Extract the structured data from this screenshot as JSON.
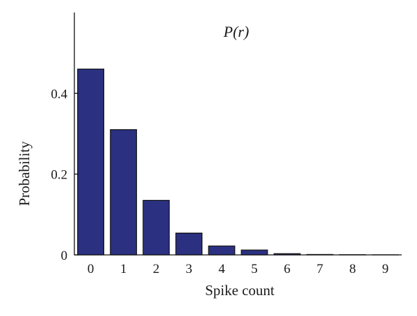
{
  "chart_data": {
    "type": "bar",
    "title": "P(r)",
    "xlabel": "Spike count",
    "ylabel": "Probability",
    "categories": [
      "0",
      "1",
      "2",
      "3",
      "4",
      "5",
      "6",
      "7",
      "8",
      "9"
    ],
    "values": [
      0.46,
      0.31,
      0.135,
      0.054,
      0.022,
      0.012,
      0.003,
      0.001,
      0.0005,
      0.0002
    ],
    "ylim": [
      0,
      0.6
    ],
    "yticks": [
      0,
      0.2,
      0.4
    ],
    "ytick_labels": [
      "0",
      "0.2",
      "0.4"
    ],
    "grid": false,
    "bar_color": "#2b3180",
    "edge_color": "#111111"
  }
}
